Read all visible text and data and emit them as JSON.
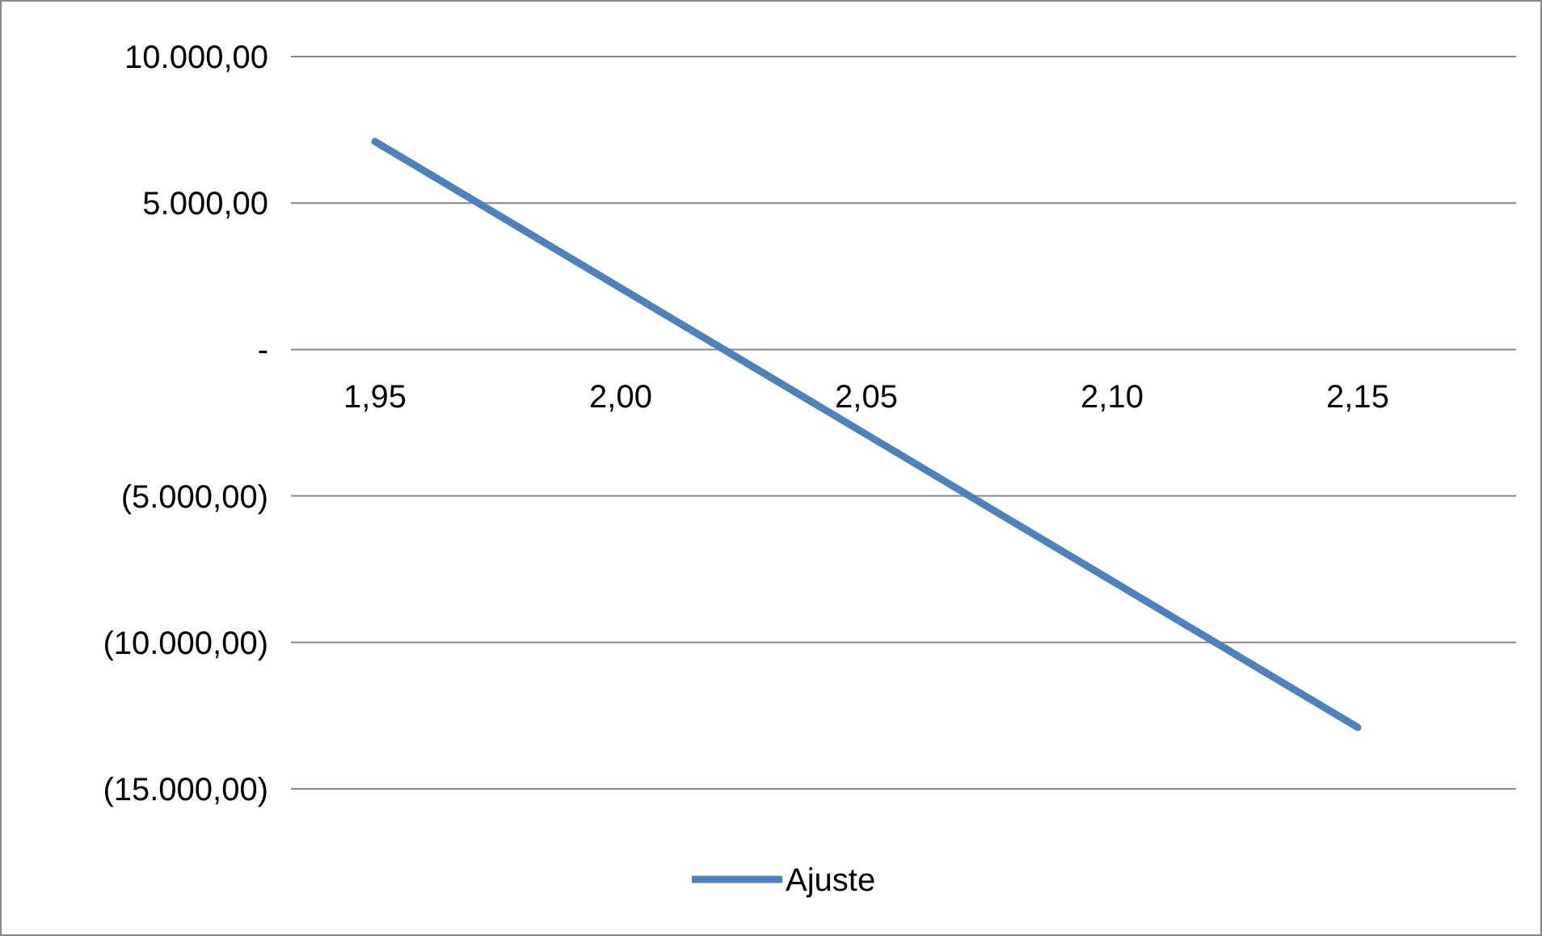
{
  "chart_data": {
    "type": "line",
    "categories": [
      "1,95",
      "2,00",
      "2,05",
      "2,10",
      "2,15"
    ],
    "series": [
      {
        "name": "Ajuste",
        "color": "#4f81bd",
        "values": [
          7100,
          2100,
          -2900,
          -7900,
          -12900
        ]
      }
    ],
    "ylim": [
      -15000,
      10000
    ],
    "yticks": [
      {
        "value": -15000,
        "label": "(15.000,00)"
      },
      {
        "value": -10000,
        "label": "(10.000,00)"
      },
      {
        "value": -5000,
        "label": "(5.000,00)"
      },
      {
        "value": 0,
        "label": "-"
      },
      {
        "value": 5000,
        "label": "5.000,00"
      },
      {
        "value": 10000,
        "label": "10.000,00"
      }
    ],
    "grid": "y",
    "legend": "bottom",
    "marker": "none",
    "line_style": "solid"
  }
}
